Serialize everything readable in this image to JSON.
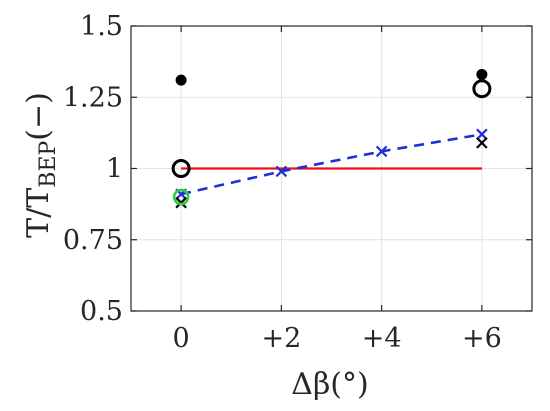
{
  "chart_data": {
    "type": "scatter",
    "xlabel": "Δβ(°)",
    "ylabel": "T/T_BEP(−)",
    "ylabel_main": "T/T",
    "ylabel_sub": "BEP",
    "ylabel_suffix": "(−)",
    "categories": [
      "0",
      "+2",
      "+4",
      "+6"
    ],
    "x_tick_values": [
      0,
      2,
      4,
      6
    ],
    "xlim": [
      -1,
      7
    ],
    "ylim": [
      0.5,
      1.5
    ],
    "y_ticks": [
      0.5,
      0.75,
      1,
      1.25,
      1.5
    ],
    "y_tick_labels": [
      "0.5",
      "0.75",
      "1",
      "1.25",
      "1.5"
    ],
    "grid": true,
    "series": [
      {
        "marker": "line",
        "color": "#e8141c",
        "x": [
          0,
          6
        ],
        "y": [
          1.0,
          1.0
        ]
      },
      {
        "marker": "dashed-x",
        "color": "#1f2fd6",
        "x": [
          0,
          2,
          4,
          6
        ],
        "y": [
          0.91,
          0.99,
          1.06,
          1.12
        ]
      },
      {
        "marker": "filled-circle",
        "color": "#000000",
        "x": [
          0,
          6
        ],
        "y": [
          1.31,
          1.33
        ]
      },
      {
        "marker": "open-circle",
        "color": "#000000",
        "x": [
          0,
          6
        ],
        "y": [
          1.0,
          1.28
        ]
      },
      {
        "marker": "x",
        "color": "#000000",
        "x": [
          0,
          6
        ],
        "y": [
          0.88,
          1.09
        ]
      },
      {
        "marker": "open-circle",
        "color": "#2ecc40",
        "x": [
          0
        ],
        "y": [
          0.9
        ]
      }
    ]
  }
}
